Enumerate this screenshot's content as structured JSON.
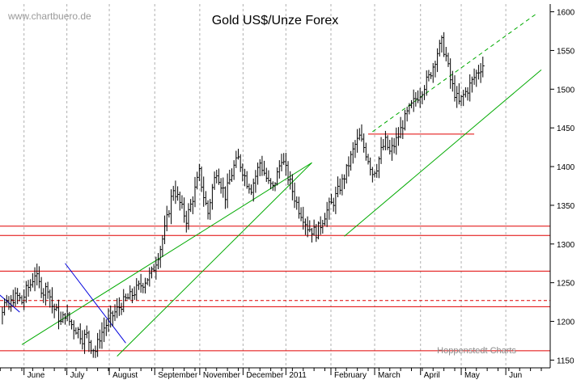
{
  "watermark": "www.chartbuero.de",
  "credit": "Hoppenstedt Charts",
  "colors": {
    "background": "#ffffff",
    "price_bars": "#000000",
    "grid": "#b0b0b0",
    "support_resistance": "#e00000",
    "trend_green": "#00aa00",
    "trend_blue": "#0000dd"
  },
  "chart_data": {
    "type": "bar",
    "title": "Gold US$/Unze Forex",
    "xlabel": "",
    "ylabel": "",
    "grid": true,
    "ylim": [
      1140,
      1610
    ],
    "y_ticks": [
      1150,
      1200,
      1250,
      1300,
      1350,
      1400,
      1450,
      1500,
      1550,
      1600
    ],
    "x_axis_labels": [
      "June",
      "July",
      "August",
      "September",
      "November",
      "December",
      "2011",
      "February",
      "March",
      "April",
      "May",
      "Jun"
    ],
    "horizontal_levels": [
      {
        "value": 1162,
        "style": "solid"
      },
      {
        "value": 1219,
        "style": "solid"
      },
      {
        "value": 1227,
        "style": "dashed"
      },
      {
        "value": 1265,
        "style": "solid"
      },
      {
        "value": 1311,
        "style": "solid"
      },
      {
        "value": 1323,
        "style": "solid"
      },
      {
        "value": 1442,
        "style": "solid",
        "segment_start_month": 8,
        "segment_end_month": 10.45
      }
    ],
    "trendlines": [
      {
        "color": "green",
        "style": "solid",
        "from": [
          0.0,
          1170
        ],
        "to": [
          6.7,
          1405
        ]
      },
      {
        "color": "green",
        "style": "solid",
        "from": [
          2.2,
          1155
        ],
        "to": [
          6.7,
          1405
        ]
      },
      {
        "color": "green",
        "style": "solid",
        "from": [
          7.45,
          1310
        ],
        "to": [
          12.0,
          1525
        ]
      },
      {
        "color": "green",
        "style": "dashed",
        "from": [
          8.1,
          1445
        ],
        "to": [
          11.9,
          1598
        ]
      },
      {
        "color": "blue",
        "style": "solid",
        "from": [
          -0.8,
          1248
        ],
        "to": [
          -0.05,
          1212
        ]
      },
      {
        "color": "blue",
        "style": "solid",
        "from": [
          1.0,
          1275
        ],
        "to": [
          2.4,
          1172
        ]
      }
    ],
    "series": [
      {
        "type": "ohlc",
        "month_positions": [
          0.05,
          1.04,
          2.02,
          3.07,
          4.11,
          5.11,
          6.1,
          7.14,
          8.15,
          9.21,
          10.15,
          11.18
        ],
        "daily_close_path": [
          [
            -0.9,
            1218
          ],
          [
            -0.8,
            1195
          ],
          [
            -0.7,
            1182
          ],
          [
            -0.6,
            1198
          ],
          [
            -0.5,
            1210
          ],
          [
            -0.4,
            1222
          ],
          [
            -0.3,
            1218
          ],
          [
            -0.2,
            1230
          ],
          [
            -0.1,
            1232
          ],
          [
            0.0,
            1225
          ],
          [
            0.1,
            1240
          ],
          [
            0.2,
            1248
          ],
          [
            0.3,
            1262
          ],
          [
            0.4,
            1248
          ],
          [
            0.5,
            1238
          ],
          [
            0.6,
            1245
          ],
          [
            0.7,
            1220
          ],
          [
            0.8,
            1212
          ],
          [
            0.9,
            1198
          ],
          [
            1.0,
            1210
          ],
          [
            1.1,
            1200
          ],
          [
            1.2,
            1192
          ],
          [
            1.3,
            1188
          ],
          [
            1.4,
            1178
          ],
          [
            1.5,
            1182
          ],
          [
            1.6,
            1168
          ],
          [
            1.7,
            1162
          ],
          [
            1.8,
            1180
          ],
          [
            1.9,
            1192
          ],
          [
            2.0,
            1200
          ],
          [
            2.1,
            1208
          ],
          [
            2.2,
            1215
          ],
          [
            2.3,
            1222
          ],
          [
            2.4,
            1228
          ],
          [
            2.5,
            1232
          ],
          [
            2.6,
            1238
          ],
          [
            2.7,
            1244
          ],
          [
            2.8,
            1250
          ],
          [
            2.9,
            1256
          ],
          [
            3.0,
            1262
          ],
          [
            3.1,
            1278
          ],
          [
            3.2,
            1295
          ],
          [
            3.3,
            1318
          ],
          [
            3.4,
            1345
          ],
          [
            3.5,
            1372
          ],
          [
            3.6,
            1360
          ],
          [
            3.7,
            1345
          ],
          [
            3.8,
            1332
          ],
          [
            3.9,
            1350
          ],
          [
            4.0,
            1370
          ],
          [
            4.1,
            1392
          ],
          [
            4.2,
            1362
          ],
          [
            4.3,
            1340
          ],
          [
            4.4,
            1372
          ],
          [
            4.5,
            1395
          ],
          [
            4.6,
            1378
          ],
          [
            4.7,
            1362
          ],
          [
            4.8,
            1382
          ],
          [
            4.9,
            1400
          ],
          [
            5.0,
            1410
          ],
          [
            5.1,
            1395
          ],
          [
            5.2,
            1380
          ],
          [
            5.3,
            1372
          ],
          [
            5.4,
            1388
          ],
          [
            5.5,
            1405
          ],
          [
            5.6,
            1392
          ],
          [
            5.7,
            1378
          ],
          [
            5.8,
            1372
          ],
          [
            5.9,
            1390
          ],
          [
            6.0,
            1412
          ],
          [
            6.1,
            1395
          ],
          [
            6.2,
            1378
          ],
          [
            6.3,
            1360
          ],
          [
            6.4,
            1345
          ],
          [
            6.5,
            1335
          ],
          [
            6.6,
            1322
          ],
          [
            6.7,
            1318
          ],
          [
            6.8,
            1315
          ],
          [
            6.9,
            1325
          ],
          [
            7.0,
            1338
          ],
          [
            7.1,
            1348
          ],
          [
            7.2,
            1355
          ],
          [
            7.3,
            1368
          ],
          [
            7.4,
            1380
          ],
          [
            7.5,
            1395
          ],
          [
            7.6,
            1412
          ],
          [
            7.7,
            1428
          ],
          [
            7.8,
            1438
          ],
          [
            7.9,
            1425
          ],
          [
            8.0,
            1410
          ],
          [
            8.1,
            1392
          ],
          [
            8.2,
            1400
          ],
          [
            8.3,
            1420
          ],
          [
            8.4,
            1432
          ],
          [
            8.5,
            1418
          ],
          [
            8.6,
            1428
          ],
          [
            8.7,
            1440
          ],
          [
            8.8,
            1455
          ],
          [
            8.9,
            1468
          ],
          [
            9.0,
            1478
          ],
          [
            9.1,
            1488
          ],
          [
            9.2,
            1495
          ],
          [
            9.3,
            1505
          ],
          [
            9.4,
            1515
          ],
          [
            9.5,
            1530
          ],
          [
            9.6,
            1548
          ],
          [
            9.7,
            1560
          ],
          [
            9.8,
            1542
          ],
          [
            9.9,
            1512
          ],
          [
            10.0,
            1495
          ],
          [
            10.1,
            1482
          ],
          [
            10.2,
            1492
          ],
          [
            10.3,
            1500
          ],
          [
            10.4,
            1510
          ],
          [
            10.5,
            1520
          ],
          [
            10.6,
            1528
          ],
          [
            10.7,
            1535
          ]
        ]
      }
    ]
  }
}
